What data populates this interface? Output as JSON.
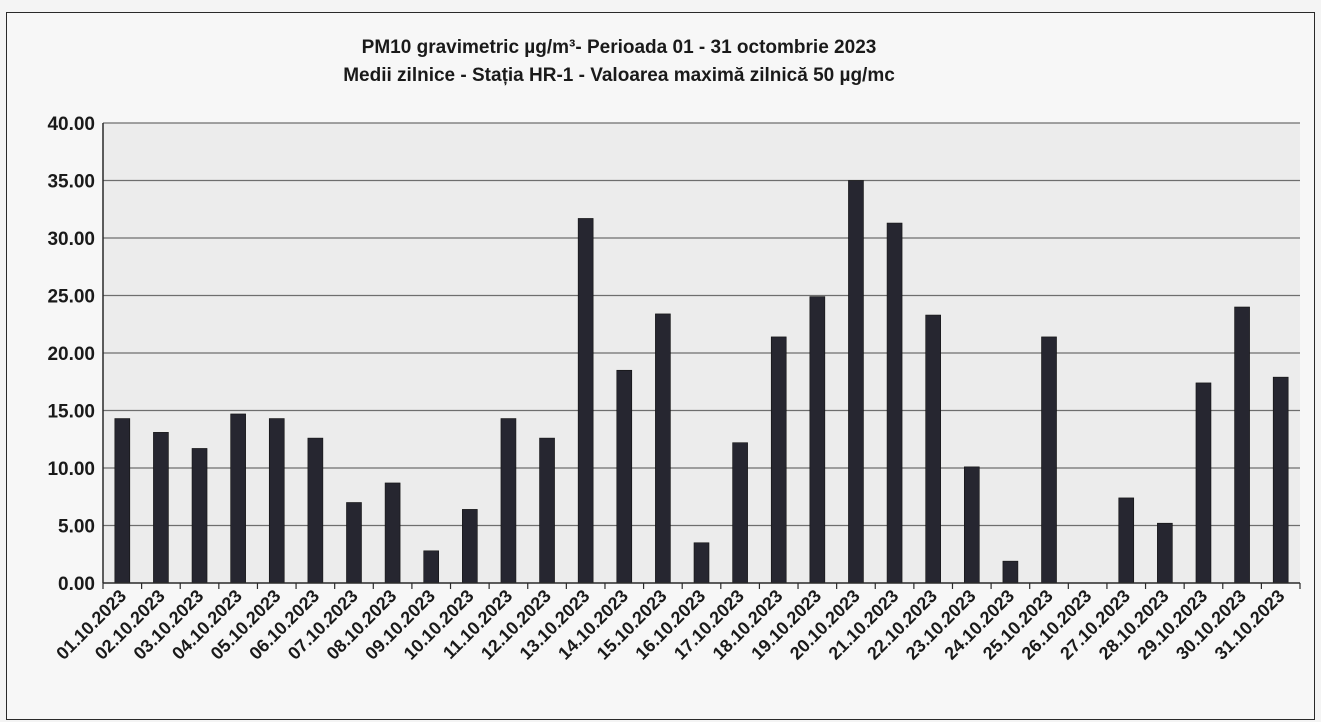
{
  "chart_data": {
    "type": "bar",
    "title_line1": "PM10 gravimetric µg/m³- Perioada 01 - 31 octombrie 2023",
    "title_line2": "Medii zilnice - Stația HR-1 -  Valoarea maximă zilnică 50 µg/mc",
    "xlabel": "",
    "ylabel": "",
    "ylim": [
      0,
      40
    ],
    "yticks": [
      "0.00",
      "5.00",
      "10.00",
      "15.00",
      "20.00",
      "25.00",
      "30.00",
      "35.00",
      "40.00"
    ],
    "grid": true,
    "legend": "none",
    "bar_color": "#262630",
    "categories": [
      "01.10.2023",
      "02.10.2023",
      "03.10.2023",
      "04.10.2023",
      "05.10.2023",
      "06.10.2023",
      "07.10.2023",
      "08.10.2023",
      "09.10.2023",
      "10.10.2023",
      "11.10.2023",
      "12.10.2023",
      "13.10.2023",
      "14.10.2023",
      "15.10.2023",
      "16.10.2023",
      "17.10.2023",
      "18.10.2023",
      "19.10.2023",
      "20.10.2023",
      "21.10.2023",
      "22.10.2023",
      "23.10.2023",
      "24.10.2023",
      "25.10.2023",
      "26.10.2023",
      "27.10.2023",
      "28.10.2023",
      "29.10.2023",
      "30.10.2023",
      "31.10.2023"
    ],
    "values": [
      14.3,
      13.1,
      11.7,
      14.7,
      14.3,
      12.6,
      7.0,
      8.7,
      2.8,
      6.4,
      14.3,
      12.6,
      31.7,
      18.5,
      23.4,
      3.5,
      12.2,
      21.4,
      24.9,
      35.0,
      31.3,
      23.3,
      10.1,
      1.9,
      21.4,
      null,
      7.4,
      5.2,
      17.4,
      24.0,
      17.9
    ]
  }
}
